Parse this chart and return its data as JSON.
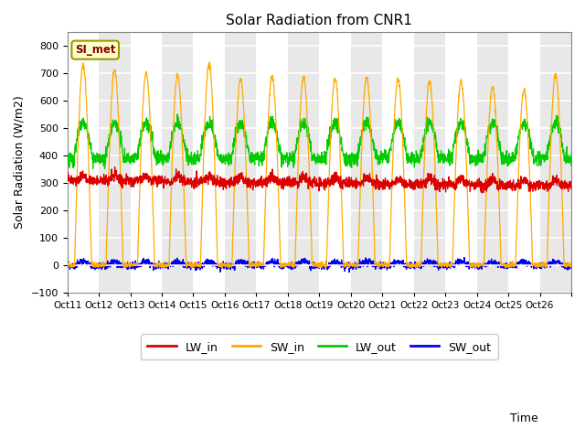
{
  "title": "Solar Radiation from CNR1",
  "xlabel": "Time",
  "ylabel": "Solar Radiation (W/m2)",
  "ylim": [
    -100,
    850
  ],
  "yticks": [
    -100,
    0,
    100,
    200,
    300,
    400,
    500,
    600,
    700,
    800
  ],
  "site_label": "SI_met",
  "background_color": "#ffffff",
  "plot_bg_color": "#e8e8e8",
  "band_color_light": "#e8e8e8",
  "band_color_white": "#ffffff",
  "colors": {
    "LW_in": "#dd0000",
    "SW_in": "#ffaa00",
    "LW_out": "#00cc00",
    "SW_out": "#0000ee"
  },
  "n_days": 16,
  "start_day": 11,
  "xtick_labels": [
    "Oct 11",
    "Oct 12",
    "Oct 13",
    "Oct 14",
    "Oct 15",
    "Oct 16",
    "Oct 17",
    "Oct 18",
    "Oct 19",
    "Oct 20",
    "Oct 21",
    "Oct 22",
    "Oct 23",
    "Oct 24",
    "Oct 25",
    "Oct 26"
  ],
  "grid_color": "#d0d0d0",
  "legend_loc": "lower center"
}
